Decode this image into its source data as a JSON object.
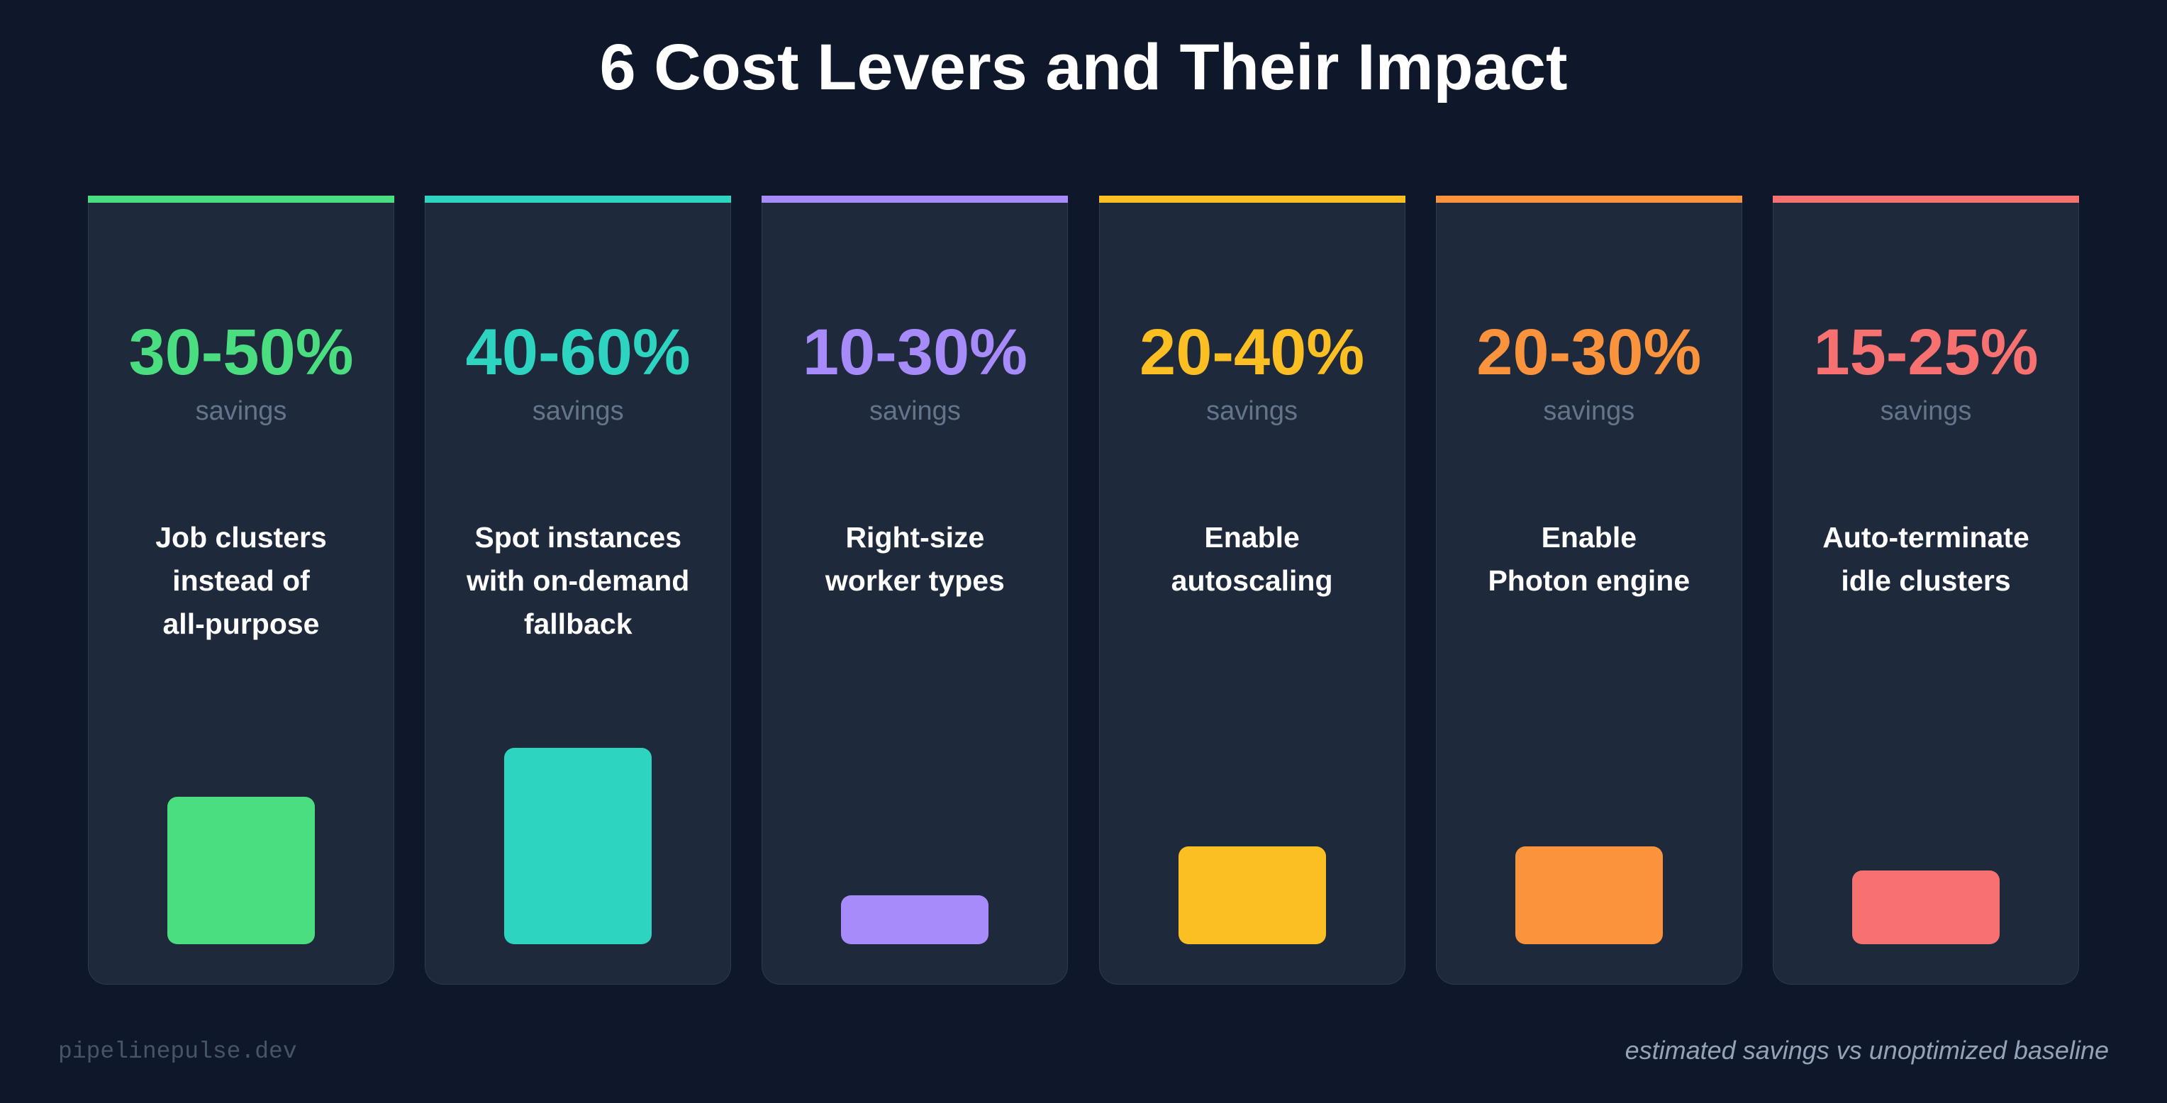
{
  "title": "6 Cost Levers and Their Impact",
  "chart_data": {
    "type": "bar",
    "title": "6 Cost Levers and Their Impact",
    "categories": [
      "Job clusters instead of all-purpose",
      "Spot instances with on-demand fallback",
      "Right-size worker types",
      "Enable autoscaling",
      "Enable Photon engine",
      "Auto-terminate idle clusters"
    ],
    "savings_ranges": [
      [
        30,
        50
      ],
      [
        40,
        60
      ],
      [
        10,
        30
      ],
      [
        20,
        40
      ],
      [
        20,
        30
      ],
      [
        15,
        25
      ]
    ],
    "bar_level": [
      0.6,
      0.8,
      0.2,
      0.4,
      0.4,
      0.3
    ],
    "legend": "none",
    "grid": false
  },
  "cards": [
    {
      "pct": "30-50%",
      "savings_label": "savings",
      "lines": [
        "Job clusters",
        "instead of",
        "all-purpose"
      ],
      "color": "#4ade80"
    },
    {
      "pct": "40-60%",
      "savings_label": "savings",
      "lines": [
        "Spot instances",
        "with on-demand",
        "fallback"
      ],
      "color": "#2dd4bf"
    },
    {
      "pct": "10-30%",
      "savings_label": "savings",
      "lines": [
        "Right-size",
        "worker types"
      ],
      "color": "#a78bfa"
    },
    {
      "pct": "20-40%",
      "savings_label": "savings",
      "lines": [
        "Enable",
        "autoscaling"
      ],
      "color": "#fbbf24"
    },
    {
      "pct": "20-30%",
      "savings_label": "savings",
      "lines": [
        "Enable",
        "Photon engine"
      ],
      "color": "#fb923c"
    },
    {
      "pct": "15-25%",
      "savings_label": "savings",
      "lines": [
        "Auto-terminate",
        "idle clusters"
      ],
      "color": "#f87171"
    }
  ],
  "footer": {
    "site": "pipelinepulse.dev",
    "note": "estimated savings vs unoptimized baseline"
  }
}
